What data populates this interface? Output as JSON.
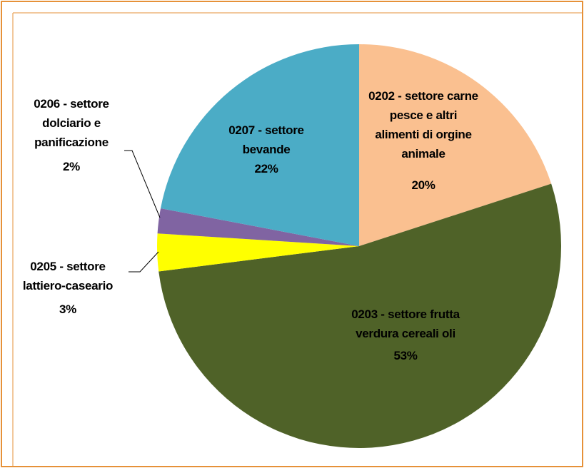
{
  "chart_data": {
    "type": "pie",
    "categories": [
      "0202 - settore carne pesce e altri alimenti di orgine animale",
      "0203 -  settore frutta verdura cereali oli",
      "0205 - settore lattiero-caseario",
      "0206 - settore dolciario e panificazione",
      "0207 - settore bevande"
    ],
    "values": [
      20,
      53,
      3,
      2,
      22
    ],
    "value_labels": [
      "20%",
      "53%",
      "3%",
      "2%",
      "22%"
    ],
    "colors": [
      "#fac090",
      "#4f6228",
      "#ffff00",
      "#8064a2",
      "#4bacc6"
    ]
  }
}
